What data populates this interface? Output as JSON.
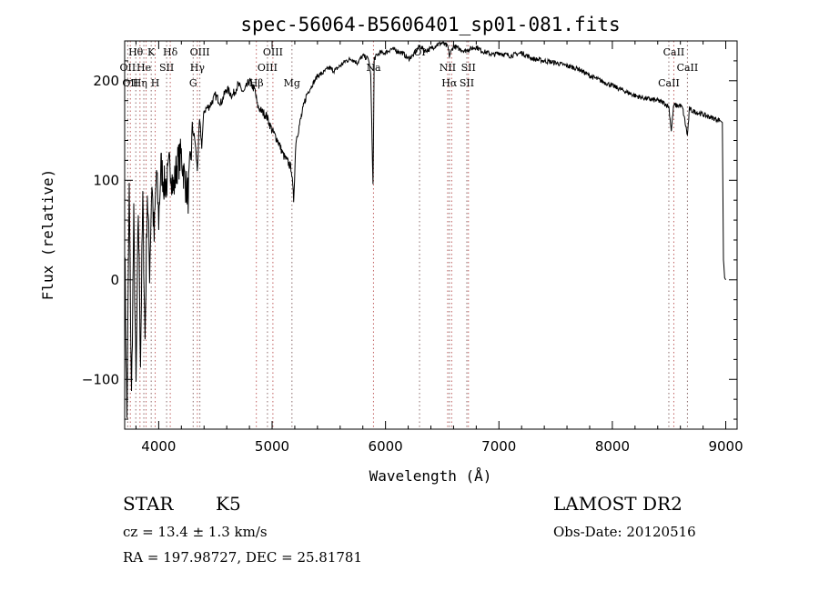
{
  "chart_data": {
    "type": "line",
    "title": "spec-56064-B5606401_sp01-081.fits",
    "xlabel": "Wavelength (Å)",
    "ylabel": "Flux (relative)",
    "xlim": [
      3700,
      9100
    ],
    "ylim": [
      -150,
      240
    ],
    "x_ticks": [
      4000,
      5000,
      6000,
      7000,
      8000,
      9000
    ],
    "y_ticks": [
      -100,
      0,
      100,
      200
    ],
    "series": [
      {
        "name": "flux",
        "x": [
          3700,
          3720,
          3740,
          3760,
          3780,
          3800,
          3820,
          3840,
          3860,
          3880,
          3900,
          3920,
          3940,
          3960,
          3980,
          4000,
          4020,
          4050,
          4080,
          4100,
          4130,
          4160,
          4200,
          4230,
          4260,
          4300,
          4320,
          4340,
          4360,
          4380,
          4400,
          4450,
          4500,
          4550,
          4600,
          4650,
          4700,
          4750,
          4800,
          4850,
          4870,
          4900,
          4950,
          5000,
          5050,
          5100,
          5140,
          5170,
          5190,
          5210,
          5250,
          5300,
          5350,
          5400,
          5450,
          5500,
          5550,
          5600,
          5650,
          5700,
          5750,
          5800,
          5850,
          5870,
          5890,
          5900,
          5920,
          5950,
          6000,
          6050,
          6100,
          6150,
          6200,
          6250,
          6300,
          6350,
          6400,
          6450,
          6500,
          6550,
          6563,
          6600,
          6650,
          6700,
          6750,
          6800,
          6850,
          6900,
          6950,
          7000,
          7100,
          7200,
          7300,
          7400,
          7500,
          7600,
          7700,
          7800,
          7900,
          8000,
          8100,
          8200,
          8300,
          8400,
          8450,
          8498,
          8520,
          8542,
          8560,
          8600,
          8620,
          8662,
          8680,
          8700,
          8750,
          8800,
          8850,
          8900,
          8950,
          8970,
          8980,
          8990,
          9000
        ],
        "values": [
          40,
          -140,
          90,
          -120,
          60,
          -110,
          70,
          -80,
          80,
          -60,
          90,
          10,
          100,
          40,
          110,
          60,
          115,
          95,
          100,
          120,
          90,
          115,
          125,
          100,
          85,
          150,
          140,
          110,
          160,
          135,
          170,
          175,
          185,
          178,
          192,
          185,
          196,
          188,
          200,
          190,
          175,
          170,
          165,
          150,
          140,
          125,
          118,
          112,
          80,
          140,
          160,
          185,
          195,
          205,
          208,
          213,
          210,
          215,
          220,
          222,
          218,
          225,
          222,
          205,
          95,
          222,
          225,
          228,
          228,
          232,
          230,
          228,
          222,
          226,
          235,
          230,
          232,
          236,
          238,
          234,
          225,
          235,
          232,
          230,
          232,
          234,
          230,
          228,
          226,
          228,
          225,
          228,
          222,
          220,
          218,
          215,
          212,
          205,
          200,
          195,
          190,
          185,
          182,
          180,
          178,
          174,
          150,
          176,
          175,
          175,
          172,
          145,
          172,
          170,
          168,
          166,
          164,
          162,
          160,
          158,
          20,
          2,
          0
        ]
      }
    ],
    "line_markers": [
      {
        "wavelength": 3727,
        "label": "OII",
        "row": 1
      },
      {
        "wavelength": 3750,
        "label": "OII",
        "row": 2
      },
      {
        "wavelength": 3798,
        "label": "Hθ",
        "row": 0
      },
      {
        "wavelength": 3835,
        "label": "Hη",
        "row": 2
      },
      {
        "wavelength": 3869,
        "label": "He",
        "row": 1
      },
      {
        "wavelength": 3889,
        "label": "",
        "row": 1
      },
      {
        "wavelength": 3934,
        "label": "K",
        "row": 0
      },
      {
        "wavelength": 3969,
        "label": "H",
        "row": 2
      },
      {
        "wavelength": 4070,
        "label": "SII",
        "row": 1
      },
      {
        "wavelength": 4102,
        "label": "Hδ",
        "row": 0
      },
      {
        "wavelength": 4304,
        "label": "G",
        "row": 2
      },
      {
        "wavelength": 4341,
        "label": "Hγ",
        "row": 1
      },
      {
        "wavelength": 4363,
        "label": "OIII",
        "row": 0
      },
      {
        "wavelength": 4861,
        "label": "Hβ",
        "row": 2
      },
      {
        "wavelength": 4959,
        "label": "OIII",
        "row": 1
      },
      {
        "wavelength": 5007,
        "label": "OIII",
        "row": 0
      },
      {
        "wavelength": 5175,
        "label": "Mg",
        "row": 2
      },
      {
        "wavelength": 5894,
        "label": "Na",
        "row": 1
      },
      {
        "wavelength": 6300,
        "label": "OI",
        "row": 0
      },
      {
        "wavelength": 6548,
        "label": "NII",
        "row": 1
      },
      {
        "wavelength": 6563,
        "label": "Hα",
        "row": 2
      },
      {
        "wavelength": 6583,
        "label": "",
        "row": 0
      },
      {
        "wavelength": 6717,
        "label": "SII",
        "row": 2
      },
      {
        "wavelength": 6731,
        "label": "SII",
        "row": 1
      },
      {
        "wavelength": 8498,
        "label": "CaII",
        "row": 2
      },
      {
        "wavelength": 8542,
        "label": "CaII",
        "row": 0
      },
      {
        "wavelength": 8662,
        "label": "CaII",
        "row": 1
      }
    ]
  },
  "info": {
    "class": "STAR",
    "subclass": "K5",
    "survey": "LAMOST DR2",
    "redshift": "cz = 13.4 ± 1.3 km/s",
    "obs_date": "Obs-Date: 20120516",
    "coords": "RA = 197.98727, DEC =  25.81781"
  }
}
